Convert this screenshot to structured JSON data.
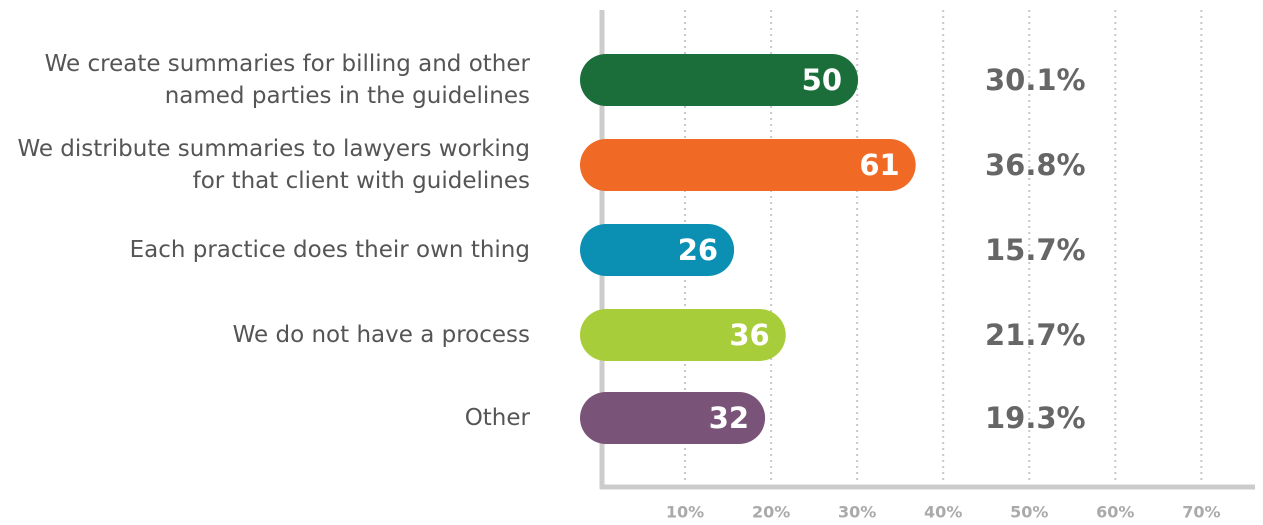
{
  "chart_data": {
    "type": "bar",
    "orientation": "horizontal",
    "categories": [
      "We create summaries for billing and other named parties in the guidelines",
      "We distribute summaries to lawyers working for that client with guidelines",
      "Each practice does their own thing",
      "We do not have a process",
      "Other"
    ],
    "values": [
      30.1,
      36.8,
      15.7,
      21.7,
      19.3
    ],
    "value_labels": [
      "30.1%",
      "36.8%",
      "15.7%",
      "21.7%",
      "19.3%"
    ],
    "counts": [
      50,
      61,
      26,
      36,
      32
    ],
    "colors": [
      "#1b6e3a",
      "#f06a25",
      "#0b90b4",
      "#a8cd3a",
      "#7a5378"
    ],
    "xlim": [
      0,
      76
    ],
    "xticks": [
      {
        "value": 10,
        "label": "10%"
      },
      {
        "value": 20,
        "label": "20%"
      },
      {
        "value": 30,
        "label": "30%"
      },
      {
        "value": 40,
        "label": "40%"
      },
      {
        "value": 50,
        "label": "50%"
      },
      {
        "value": 60,
        "label": "60%"
      },
      {
        "value": 70,
        "label": "70%"
      }
    ],
    "grid": true
  }
}
